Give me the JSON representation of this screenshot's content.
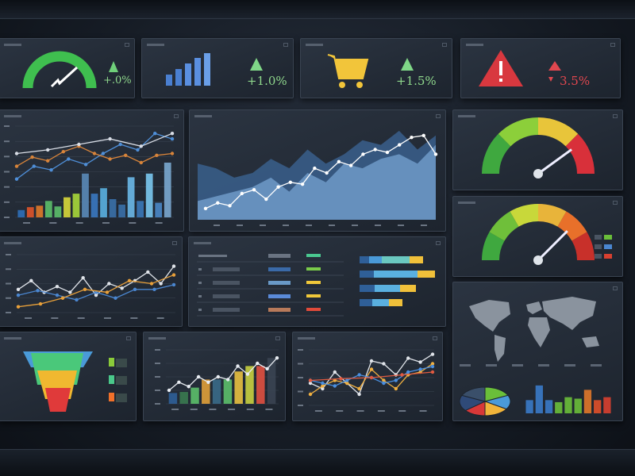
{
  "kpis": [
    {
      "value": "+.0%",
      "trend": "up",
      "icon": "gauge-icon",
      "color": "#3fbf4f"
    },
    {
      "value": "+1.0%",
      "trend": "up",
      "icon": "bar-chart-icon",
      "color": "#4f86d6"
    },
    {
      "value": "+1.5%",
      "trend": "up",
      "icon": "shopping-cart-icon",
      "color": "#f2c53a"
    },
    {
      "value": "3.5%",
      "trend": "down",
      "icon": "warning-icon",
      "color": "#d8383f"
    }
  ],
  "gauges": [
    {
      "value": 0.8
    },
    {
      "value": 0.75
    }
  ],
  "chart_data": [
    {
      "type": "bar",
      "name": "combo-chart-top-left",
      "ylim": [
        0,
        250
      ],
      "bars": [
        20,
        28,
        32,
        45,
        30,
        55,
        65,
        120,
        65,
        80,
        50,
        35,
        110,
        45,
        120,
        40,
        150
      ],
      "bar_colors": [
        "#2f6fb8",
        "#e0542a",
        "#e07a2a",
        "#5cbf6a",
        "#5cbf6a",
        "#d8d83a",
        "#a8d83a",
        "#5a8ab8",
        "#3a78c0",
        "#5ab0e0",
        "#3a70a8",
        "#3a70a8",
        "#6ab8e8",
        "#3a78b8",
        "#7ac8f0",
        "#4a88c8",
        "#7aa8d0"
      ],
      "series": [
        {
          "color": "#4f8fd8",
          "values": [
            105,
            140,
            130,
            160,
            145,
            175,
            200,
            185,
            230,
            215
          ]
        },
        {
          "color": "#d8843a",
          "values": [
            140,
            165,
            155,
            180,
            195,
            175,
            160,
            170,
            150,
            170,
            175
          ]
        },
        {
          "color": "#d8dde6",
          "values": [
            175,
            185,
            200,
            215,
            195,
            230
          ]
        }
      ]
    },
    {
      "type": "area",
      "name": "area-chart",
      "ylim": [
        0,
        100
      ],
      "areas": [
        {
          "color": "#3a5f8c",
          "values": [
            60,
            55,
            45,
            50,
            65,
            55,
            75,
            60,
            70,
            85,
            80,
            95,
            75,
            90
          ]
        },
        {
          "color": "#6f9ac8",
          "values": [
            20,
            25,
            30,
            35,
            45,
            30,
            50,
            40,
            60,
            55,
            65,
            70,
            60,
            80
          ]
        }
      ],
      "series": [
        {
          "color": "#ffffff",
          "values": [
            12,
            18,
            15,
            28,
            32,
            22,
            35,
            40,
            38,
            55,
            50,
            62,
            58,
            70,
            75,
            72,
            80,
            88,
            90,
            70
          ]
        }
      ]
    },
    {
      "type": "line",
      "name": "line-chart-middle",
      "ylim": [
        0,
        100
      ],
      "series": [
        {
          "color": "#e0e4ea",
          "values": [
            40,
            55,
            35,
            45,
            35,
            60,
            30,
            50,
            42,
            55,
            70,
            50,
            80
          ]
        },
        {
          "color": "#4a86d0",
          "values": [
            30,
            38,
            30,
            22,
            35,
            25,
            40,
            40,
            48
          ]
        },
        {
          "color": "#e8a03a",
          "values": [
            10,
            15,
            25,
            40,
            35,
            55,
            50,
            65
          ]
        }
      ]
    },
    {
      "type": "hbar",
      "name": "stacked-bars",
      "values": [
        [
          0.12,
          0.16,
          0.35,
          0.17
        ],
        [
          0.18,
          0.55,
          0.22,
          0
        ],
        [
          0.19,
          0.32,
          0.2,
          0
        ],
        [
          0.16,
          0.21,
          0.17,
          0
        ]
      ],
      "colors": [
        "#2f5f98",
        "#4a9ad8",
        "#6ac8c0",
        "#f0c03a"
      ],
      "alt_colors": [
        "#2f5f98",
        "#5ab0e0",
        "#f0c03a",
        "#e8b030"
      ]
    },
    {
      "type": "bar",
      "name": "bar-line-bottom",
      "ylim": [
        0,
        100
      ],
      "bars": [
        20,
        22,
        30,
        45,
        45,
        45,
        60,
        70,
        70,
        85
      ],
      "bar_colors": [
        "#2f5f98",
        "#3a7a50",
        "#5cbf6a",
        "#e0a03a",
        "#3a6a88",
        "#5cbf6a",
        "#e8c040",
        "#c8d040",
        "#e05040",
        "#3a4452"
      ],
      "series": [
        {
          "color": "#e8ecf2",
          "values": [
            25,
            40,
            32,
            50,
            40,
            50,
            45,
            70,
            55,
            75,
            65,
            85
          ]
        }
      ]
    },
    {
      "type": "line",
      "name": "line-chart-bottom",
      "ylim": [
        0,
        100
      ],
      "series": [
        {
          "color": "#e0e4ea",
          "values": [
            40,
            30,
            60,
            40,
            20,
            80,
            75,
            55,
            85,
            78,
            92
          ]
        },
        {
          "color": "#f0b040",
          "values": [
            20,
            35,
            45,
            40,
            30,
            65,
            45,
            30,
            55,
            60,
            75
          ]
        },
        {
          "color": "#4a8fe0",
          "values": [
            45,
            40,
            35,
            45,
            55,
            50,
            40,
            45,
            60,
            65,
            70
          ]
        },
        {
          "color": "#e05a40",
          "values": [
            45,
            48,
            50,
            55,
            60
          ]
        }
      ]
    },
    {
      "type": "pie",
      "name": "pie-chart",
      "values": [
        18,
        16,
        16,
        14,
        18,
        18
      ],
      "colors": [
        "#6abf3a",
        "#4a9ad8",
        "#f0b43a",
        "#d83838",
        "#2f4a78",
        "#3a4f6a"
      ]
    },
    {
      "type": "bar",
      "name": "bar-chart-map-panel",
      "ylim": [
        0,
        100
      ],
      "bars": [
        45,
        95,
        45,
        38,
        55,
        50,
        80,
        45,
        55
      ],
      "bar_colors": [
        "#3a7ac8",
        "#3a7ac8",
        "#3a7ac8",
        "#6abf3a",
        "#6abf3a",
        "#6abf3a",
        "#e0782a",
        "#e0502a",
        "#d84030"
      ]
    },
    {
      "type": "funnel",
      "name": "funnel-chart",
      "colors": [
        "#4a9ad8",
        "#4ac87a",
        "#f0b830",
        "#e03a3a"
      ],
      "legend_colors": [
        "#8acb3a",
        "#4ac88a",
        "#f0702a"
      ]
    }
  ]
}
